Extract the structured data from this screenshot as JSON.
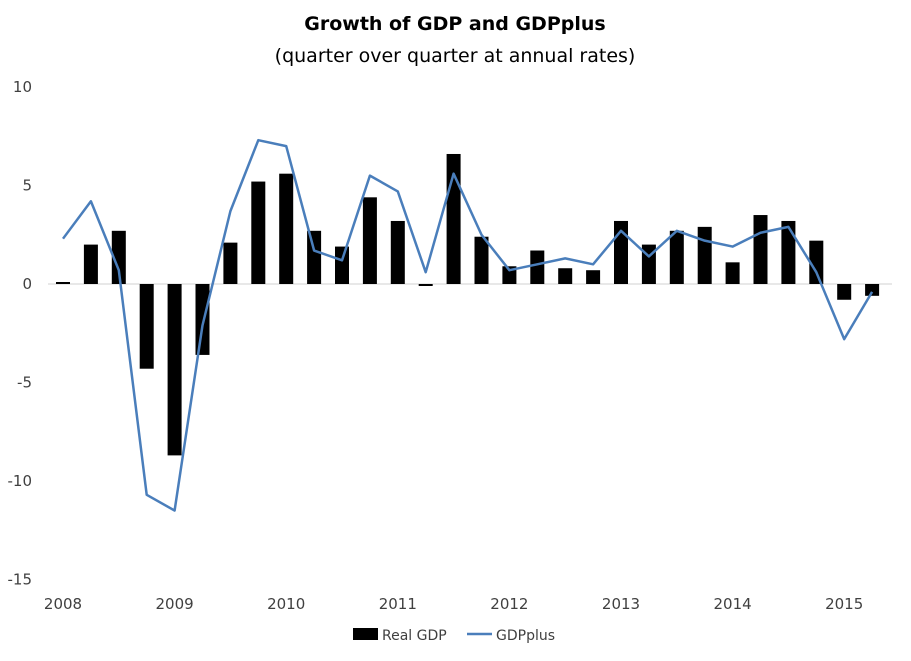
{
  "chart_data": {
    "type": "bar+line",
    "title": "Growth of GDP and GDPplus",
    "subtitle": "(quarter over quarter at annual rates)",
    "xlabel": "",
    "ylabel": "",
    "ylim": [
      -15,
      10
    ],
    "yticks": [
      10,
      5,
      0,
      -5,
      -10,
      -15
    ],
    "xtick_labels": [
      "2008",
      "2009",
      "2010",
      "2011",
      "2012",
      "2013",
      "2014",
      "2015"
    ],
    "grid": false,
    "legend_position": "bottom",
    "categories": [
      "2008Q1",
      "2008Q2",
      "2008Q3",
      "2008Q4",
      "2009Q1",
      "2009Q2",
      "2009Q3",
      "2009Q4",
      "2010Q1",
      "2010Q2",
      "2010Q3",
      "2010Q4",
      "2011Q1",
      "2011Q2",
      "2011Q3",
      "2011Q4",
      "2012Q1",
      "2012Q2",
      "2012Q3",
      "2012Q4",
      "2013Q1",
      "2013Q2",
      "2013Q3",
      "2013Q4",
      "2014Q1",
      "2014Q2",
      "2014Q3",
      "2014Q4",
      "2015Q1",
      "2015Q2"
    ],
    "series": [
      {
        "name": "Real GDP",
        "type": "bar",
        "color": "#000000",
        "values": [
          0.1,
          2.0,
          2.7,
          -4.3,
          -8.7,
          -3.6,
          2.1,
          5.2,
          5.6,
          2.7,
          1.9,
          4.4,
          3.2,
          -0.1,
          6.6,
          2.4,
          0.9,
          1.7,
          0.8,
          0.7,
          3.2,
          2.0,
          2.7,
          2.9,
          1.1,
          3.5,
          3.2,
          2.2,
          -0.8,
          -0.6
        ]
      },
      {
        "name": "GDPplus",
        "type": "line",
        "color": "#4a7ebb",
        "values": [
          2.3,
          4.2,
          0.7,
          -10.7,
          -11.5,
          -2.1,
          3.7,
          7.3,
          7.0,
          1.7,
          1.2,
          5.5,
          4.7,
          0.6,
          5.6,
          2.5,
          0.7,
          1.0,
          1.3,
          1.0,
          2.7,
          1.4,
          2.7,
          2.2,
          1.9,
          2.6,
          2.9,
          0.6,
          -2.8,
          -0.4
        ]
      }
    ]
  }
}
